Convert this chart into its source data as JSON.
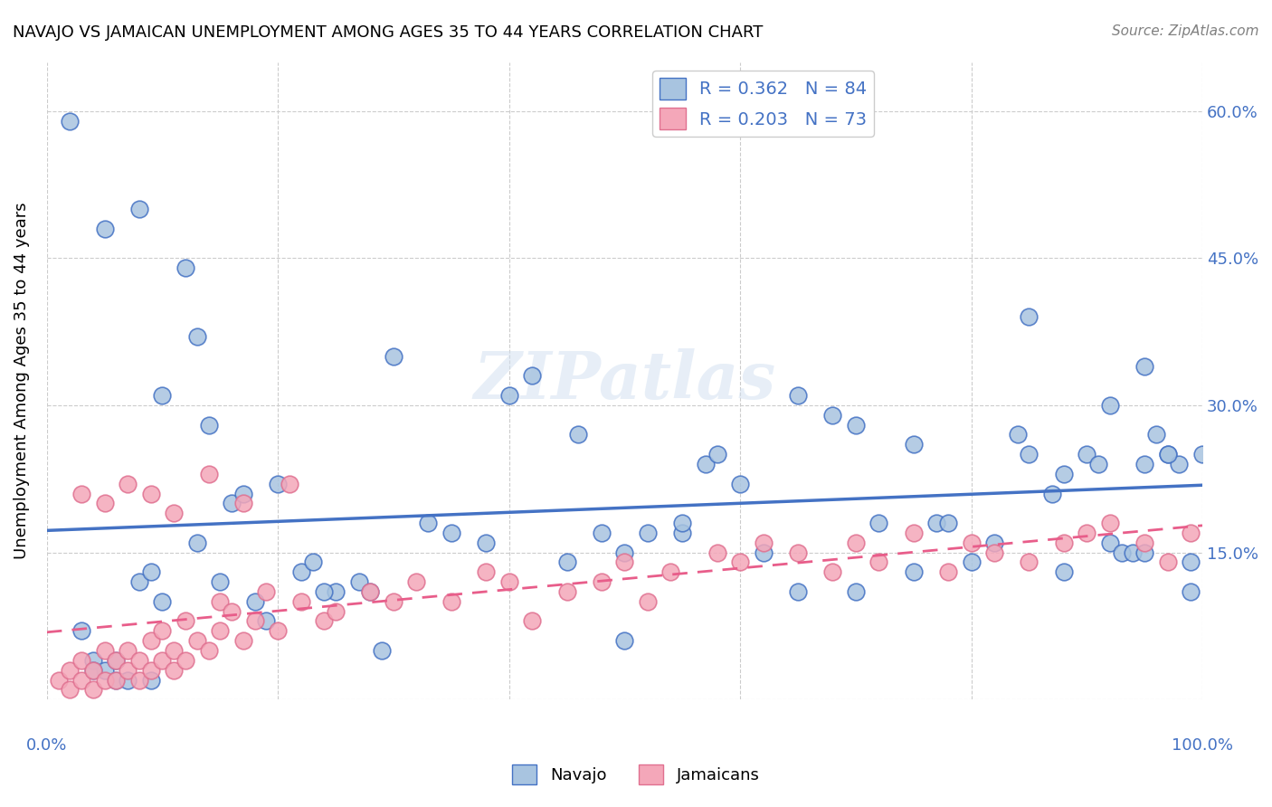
{
  "title": "NAVAJO VS JAMAICAN UNEMPLOYMENT AMONG AGES 35 TO 44 YEARS CORRELATION CHART",
  "source": "Source: ZipAtlas.com",
  "ylabel": "Unemployment Among Ages 35 to 44 years",
  "xlim": [
    0,
    1.0
  ],
  "ylim": [
    0,
    0.65
  ],
  "xticks": [
    0.0,
    0.2,
    0.4,
    0.6,
    0.8,
    1.0
  ],
  "yticks": [
    0.0,
    0.15,
    0.3,
    0.45,
    0.6
  ],
  "yticklabels": [
    "",
    "15.0%",
    "30.0%",
    "45.0%",
    "60.0%"
  ],
  "navajo_color": "#a8c4e0",
  "jamaican_color": "#f4a7b9",
  "navajo_line_color": "#4472c4",
  "jamaican_line_color": "#e85d8a",
  "jamaican_edge_color": "#e07090",
  "legend_navajo_label": "R = 0.362   N = 84",
  "legend_jamaican_label": "R = 0.203   N = 73",
  "watermark": "ZIPatlas",
  "navajo_x": [
    0.02,
    0.03,
    0.04,
    0.05,
    0.06,
    0.07,
    0.08,
    0.09,
    0.1,
    0.12,
    0.13,
    0.14,
    0.16,
    0.19,
    0.22,
    0.23,
    0.25,
    0.27,
    0.3,
    0.33,
    0.38,
    0.42,
    0.46,
    0.48,
    0.5,
    0.52,
    0.55,
    0.57,
    0.6,
    0.62,
    0.65,
    0.68,
    0.7,
    0.72,
    0.75,
    0.77,
    0.78,
    0.8,
    0.82,
    0.84,
    0.85,
    0.87,
    0.88,
    0.9,
    0.91,
    0.92,
    0.93,
    0.94,
    0.95,
    0.96,
    0.97,
    0.98,
    0.99,
    1.0,
    0.05,
    0.08,
    0.1,
    0.13,
    0.17,
    0.2,
    0.24,
    0.28,
    0.35,
    0.4,
    0.45,
    0.55,
    0.65,
    0.75,
    0.85,
    0.88,
    0.92,
    0.95,
    0.97,
    0.99,
    0.04,
    0.06,
    0.09,
    0.15,
    0.18,
    0.29,
    0.5,
    0.58,
    0.7,
    0.95
  ],
  "navajo_y": [
    0.59,
    0.07,
    0.04,
    0.03,
    0.02,
    0.02,
    0.12,
    0.13,
    0.31,
    0.44,
    0.37,
    0.28,
    0.2,
    0.08,
    0.13,
    0.14,
    0.11,
    0.12,
    0.35,
    0.18,
    0.16,
    0.33,
    0.27,
    0.17,
    0.15,
    0.17,
    0.17,
    0.24,
    0.22,
    0.15,
    0.31,
    0.29,
    0.28,
    0.18,
    0.13,
    0.18,
    0.18,
    0.14,
    0.16,
    0.27,
    0.25,
    0.21,
    0.23,
    0.25,
    0.24,
    0.16,
    0.15,
    0.15,
    0.24,
    0.27,
    0.25,
    0.24,
    0.14,
    0.25,
    0.48,
    0.5,
    0.1,
    0.16,
    0.21,
    0.22,
    0.11,
    0.11,
    0.17,
    0.31,
    0.14,
    0.18,
    0.11,
    0.26,
    0.39,
    0.13,
    0.3,
    0.34,
    0.25,
    0.11,
    0.03,
    0.04,
    0.02,
    0.12,
    0.1,
    0.05,
    0.06,
    0.25,
    0.11,
    0.15
  ],
  "jamaican_x": [
    0.01,
    0.02,
    0.02,
    0.03,
    0.03,
    0.04,
    0.04,
    0.05,
    0.05,
    0.06,
    0.06,
    0.07,
    0.07,
    0.08,
    0.08,
    0.09,
    0.09,
    0.1,
    0.1,
    0.11,
    0.11,
    0.12,
    0.12,
    0.13,
    0.14,
    0.15,
    0.15,
    0.16,
    0.17,
    0.18,
    0.19,
    0.2,
    0.22,
    0.24,
    0.25,
    0.28,
    0.3,
    0.32,
    0.35,
    0.38,
    0.4,
    0.42,
    0.45,
    0.48,
    0.5,
    0.52,
    0.54,
    0.58,
    0.6,
    0.62,
    0.65,
    0.68,
    0.7,
    0.72,
    0.75,
    0.78,
    0.8,
    0.82,
    0.85,
    0.88,
    0.9,
    0.92,
    0.95,
    0.97,
    0.99,
    0.03,
    0.05,
    0.07,
    0.09,
    0.11,
    0.14,
    0.17,
    0.21
  ],
  "jamaican_y": [
    0.02,
    0.01,
    0.03,
    0.02,
    0.04,
    0.01,
    0.03,
    0.02,
    0.05,
    0.02,
    0.04,
    0.03,
    0.05,
    0.02,
    0.04,
    0.06,
    0.03,
    0.04,
    0.07,
    0.03,
    0.05,
    0.08,
    0.04,
    0.06,
    0.05,
    0.07,
    0.1,
    0.09,
    0.06,
    0.08,
    0.11,
    0.07,
    0.1,
    0.08,
    0.09,
    0.11,
    0.1,
    0.12,
    0.1,
    0.13,
    0.12,
    0.08,
    0.11,
    0.12,
    0.14,
    0.1,
    0.13,
    0.15,
    0.14,
    0.16,
    0.15,
    0.13,
    0.16,
    0.14,
    0.17,
    0.13,
    0.16,
    0.15,
    0.14,
    0.16,
    0.17,
    0.18,
    0.16,
    0.14,
    0.17,
    0.21,
    0.2,
    0.22,
    0.21,
    0.19,
    0.23,
    0.2,
    0.22
  ]
}
